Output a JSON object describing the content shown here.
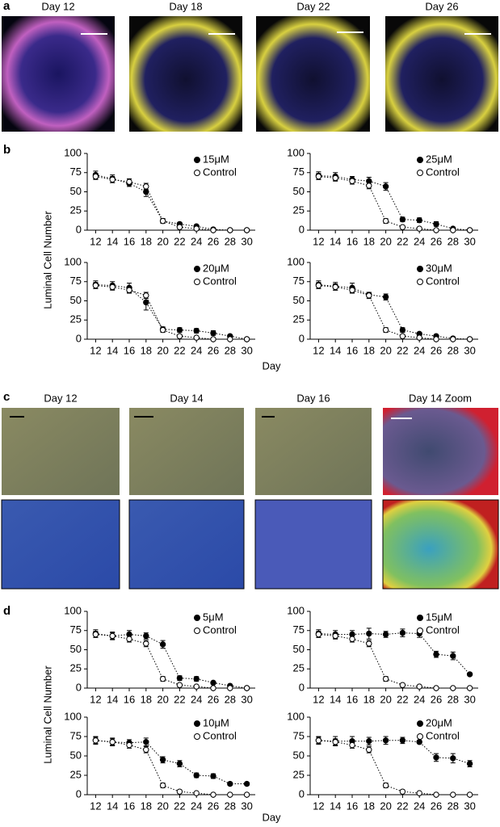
{
  "panels": [
    {
      "label": "a",
      "images": [
        "Day 12",
        "Day 18",
        "Day 22",
        "Day 26"
      ]
    },
    {
      "label": "b",
      "ylabel": "Luminal Cell Number",
      "xlabel": "Day"
    },
    {
      "label": "c",
      "images": [
        "Day 12",
        "Day 14",
        "Day 16",
        "Day 14 Zoom"
      ]
    },
    {
      "label": "d",
      "ylabel": "Luminal Cell Number",
      "xlabel": "Day"
    }
  ],
  "chart_data": [
    {
      "type": "line",
      "x": [
        12,
        14,
        16,
        18,
        20,
        22,
        24,
        26,
        28,
        30
      ],
      "xlim": [
        11,
        31
      ],
      "xticks": [
        12,
        14,
        16,
        18,
        20,
        22,
        24,
        26,
        28,
        30
      ],
      "ylim": [
        0,
        100
      ],
      "yticks": [
        0,
        25,
        50,
        75,
        100
      ],
      "grid": false,
      "legend": "upper right",
      "series": [
        {
          "name": "15μM",
          "color": "#000000",
          "marker": "filled",
          "values": [
            72,
            67,
            61,
            50,
            12,
            8,
            5,
            1,
            0,
            0
          ],
          "errors": [
            5,
            5,
            4,
            6,
            3,
            2,
            2,
            1,
            0,
            0
          ]
        },
        {
          "name": "Control",
          "color": "#000000",
          "marker": "open",
          "values": [
            70,
            66,
            63,
            57,
            12,
            4,
            2,
            0,
            0,
            0
          ],
          "errors": [
            4,
            4,
            4,
            4,
            3,
            2,
            1,
            0,
            0,
            0
          ]
        }
      ]
    },
    {
      "type": "line",
      "x": [
        12,
        14,
        16,
        18,
        20,
        22,
        24,
        26,
        28,
        30
      ],
      "xlim": [
        11,
        31
      ],
      "xticks": [
        12,
        14,
        16,
        18,
        20,
        22,
        24,
        26,
        28,
        30
      ],
      "ylim": [
        0,
        100
      ],
      "yticks": [
        0,
        25,
        50,
        75,
        100
      ],
      "grid": false,
      "legend": "upper right",
      "series": [
        {
          "name": "25μM",
          "color": "#000000",
          "marker": "filled",
          "values": [
            71,
            70,
            66,
            64,
            57,
            14,
            13,
            8,
            2,
            0
          ],
          "errors": [
            5,
            5,
            4,
            5,
            5,
            3,
            3,
            3,
            1,
            0
          ]
        },
        {
          "name": "Control",
          "color": "#000000",
          "marker": "open",
          "values": [
            70,
            68,
            64,
            58,
            12,
            4,
            2,
            0,
            0,
            0
          ],
          "errors": [
            4,
            4,
            4,
            4,
            3,
            2,
            1,
            0,
            0,
            0
          ]
        }
      ]
    },
    {
      "type": "line",
      "x": [
        12,
        14,
        16,
        18,
        20,
        22,
        24,
        26,
        28,
        30
      ],
      "xlim": [
        11,
        31
      ],
      "xticks": [
        12,
        14,
        16,
        18,
        20,
        22,
        24,
        26,
        28,
        30
      ],
      "ylim": [
        0,
        100
      ],
      "yticks": [
        0,
        25,
        50,
        75,
        100
      ],
      "grid": false,
      "legend": "upper right",
      "series": [
        {
          "name": "20μM",
          "color": "#000000",
          "marker": "filled",
          "values": [
            71,
            70,
            67,
            48,
            13,
            12,
            11,
            8,
            4,
            0
          ],
          "errors": [
            5,
            5,
            6,
            10,
            3,
            3,
            3,
            3,
            2,
            0
          ]
        },
        {
          "name": "Control",
          "color": "#000000",
          "marker": "open",
          "values": [
            70,
            68,
            64,
            57,
            12,
            4,
            2,
            0,
            0,
            0
          ],
          "errors": [
            4,
            4,
            4,
            4,
            3,
            2,
            1,
            0,
            0,
            0
          ]
        }
      ]
    },
    {
      "type": "line",
      "x": [
        12,
        14,
        16,
        18,
        20,
        22,
        24,
        26,
        28,
        30
      ],
      "xlim": [
        11,
        31
      ],
      "xticks": [
        12,
        14,
        16,
        18,
        20,
        22,
        24,
        26,
        28,
        30
      ],
      "ylim": [
        0,
        100
      ],
      "yticks": [
        0,
        25,
        50,
        75,
        100
      ],
      "grid": false,
      "legend": "upper right",
      "series": [
        {
          "name": "30μM",
          "color": "#000000",
          "marker": "filled",
          "values": [
            71,
            69,
            67,
            58,
            55,
            12,
            7,
            4,
            1,
            0
          ],
          "errors": [
            5,
            5,
            6,
            3,
            4,
            3,
            2,
            2,
            1,
            0
          ]
        },
        {
          "name": "Control",
          "color": "#000000",
          "marker": "open",
          "values": [
            70,
            68,
            64,
            57,
            12,
            4,
            2,
            0,
            0,
            0
          ],
          "errors": [
            4,
            4,
            4,
            4,
            3,
            2,
            1,
            0,
            0,
            0
          ]
        }
      ]
    },
    {
      "type": "line",
      "x": [
        12,
        14,
        16,
        18,
        20,
        22,
        24,
        26,
        28,
        30
      ],
      "xlim": [
        11,
        31
      ],
      "xticks": [
        12,
        14,
        16,
        18,
        20,
        22,
        24,
        26,
        28,
        30
      ],
      "ylim": [
        0,
        100
      ],
      "yticks": [
        0,
        25,
        50,
        75,
        100
      ],
      "grid": false,
      "legend": "upper right",
      "series": [
        {
          "name": "5μM",
          "color": "#000000",
          "marker": "filled",
          "values": [
            71,
            68,
            70,
            68,
            57,
            13,
            12,
            7,
            3,
            0
          ],
          "errors": [
            5,
            5,
            5,
            4,
            5,
            3,
            3,
            2,
            1,
            0
          ]
        },
        {
          "name": "Control",
          "color": "#000000",
          "marker": "open",
          "values": [
            70,
            68,
            64,
            58,
            12,
            4,
            2,
            0,
            0,
            0
          ],
          "errors": [
            4,
            4,
            4,
            4,
            3,
            2,
            1,
            0,
            0,
            0
          ]
        }
      ]
    },
    {
      "type": "line",
      "x": [
        12,
        14,
        16,
        18,
        20,
        22,
        24,
        26,
        28,
        30
      ],
      "xlim": [
        11,
        31
      ],
      "xticks": [
        12,
        14,
        16,
        18,
        20,
        22,
        24,
        26,
        28,
        30
      ],
      "ylim": [
        0,
        100
      ],
      "yticks": [
        0,
        25,
        50,
        75,
        100
      ],
      "grid": false,
      "legend": "upper right",
      "series": [
        {
          "name": "15μM",
          "color": "#000000",
          "marker": "filled",
          "values": [
            71,
            70,
            70,
            71,
            70,
            72,
            71,
            44,
            42,
            18
          ],
          "errors": [
            5,
            5,
            5,
            7,
            4,
            5,
            5,
            4,
            5,
            1
          ]
        },
        {
          "name": "Control",
          "color": "#000000",
          "marker": "open",
          "values": [
            70,
            68,
            64,
            58,
            12,
            4,
            2,
            0,
            0,
            0
          ],
          "errors": [
            4,
            4,
            4,
            4,
            3,
            2,
            1,
            0,
            0,
            0
          ]
        }
      ]
    },
    {
      "type": "line",
      "x": [
        12,
        14,
        16,
        18,
        20,
        22,
        24,
        26,
        28,
        30
      ],
      "xlim": [
        11,
        31
      ],
      "xticks": [
        12,
        14,
        16,
        18,
        20,
        22,
        24,
        26,
        28,
        30
      ],
      "ylim": [
        0,
        100
      ],
      "yticks": [
        0,
        25,
        50,
        75,
        100
      ],
      "grid": false,
      "legend": "upper right",
      "series": [
        {
          "name": "10μM",
          "color": "#000000",
          "marker": "filled",
          "values": [
            70,
            68,
            67,
            68,
            45,
            40,
            25,
            24,
            14,
            14
          ],
          "errors": [
            5,
            5,
            4,
            5,
            4,
            4,
            3,
            3,
            2,
            2
          ]
        },
        {
          "name": "Control",
          "color": "#000000",
          "marker": "open",
          "values": [
            70,
            68,
            64,
            58,
            12,
            4,
            2,
            0,
            0,
            0
          ],
          "errors": [
            4,
            4,
            4,
            4,
            3,
            2,
            1,
            0,
            0,
            0
          ]
        }
      ]
    },
    {
      "type": "line",
      "x": [
        12,
        14,
        16,
        18,
        20,
        22,
        24,
        26,
        28,
        30
      ],
      "xlim": [
        11,
        31
      ],
      "xticks": [
        12,
        14,
        16,
        18,
        20,
        22,
        24,
        26,
        28,
        30
      ],
      "ylim": [
        0,
        100
      ],
      "yticks": [
        0,
        25,
        50,
        75,
        100
      ],
      "grid": false,
      "legend": "upper right",
      "series": [
        {
          "name": "20μM",
          "color": "#000000",
          "marker": "filled",
          "values": [
            70,
            69,
            69,
            69,
            70,
            70,
            68,
            48,
            47,
            40
          ],
          "errors": [
            5,
            6,
            6,
            5,
            5,
            4,
            2,
            5,
            6,
            4
          ]
        },
        {
          "name": "Control",
          "color": "#000000",
          "marker": "open",
          "values": [
            70,
            68,
            64,
            58,
            12,
            4,
            2,
            0,
            0,
            0
          ],
          "errors": [
            4,
            4,
            4,
            4,
            3,
            2,
            1,
            0,
            0,
            0
          ]
        }
      ]
    }
  ]
}
